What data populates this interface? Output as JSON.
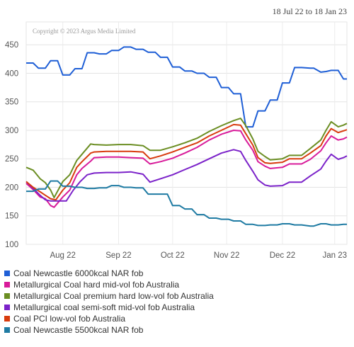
{
  "date_range": "18 Jul 22 to 18 Jan 23",
  "copyright": "Copyright © 2023 Argus Media Limited",
  "chart_data": {
    "type": "line",
    "title": "",
    "xlabel": "",
    "ylabel": "",
    "x_range": [
      "2022-07-18",
      "2023-01-18"
    ],
    "x_ticks": [
      {
        "label": "Aug 22",
        "date": "2022-08-08"
      },
      {
        "label": "Sep 22",
        "date": "2022-09-09"
      },
      {
        "label": "Oct 22",
        "date": "2022-10-10"
      },
      {
        "label": "Nov 22",
        "date": "2022-11-10"
      },
      {
        "label": "Dec 22",
        "date": "2022-12-12"
      },
      {
        "label": "Jan 23",
        "date": "2023-01-11"
      }
    ],
    "ylim": [
      100,
      490
    ],
    "y_ticks": [
      100,
      150,
      200,
      250,
      300,
      350,
      400,
      450
    ],
    "grid": true,
    "legend_position": "bottom",
    "series": [
      {
        "name": "Coal Newcastle 6000kcal NAR fob",
        "color": "#1f5fd6",
        "points": [
          [
            "2022-07-18",
            418
          ],
          [
            "2022-07-22",
            418
          ],
          [
            "2022-07-25",
            409
          ],
          [
            "2022-07-29",
            409
          ],
          [
            "2022-08-01",
            422
          ],
          [
            "2022-08-05",
            422
          ],
          [
            "2022-08-08",
            397
          ],
          [
            "2022-08-12",
            397
          ],
          [
            "2022-08-15",
            408
          ],
          [
            "2022-08-19",
            408
          ],
          [
            "2022-08-22",
            436
          ],
          [
            "2022-08-26",
            436
          ],
          [
            "2022-08-29",
            434
          ],
          [
            "2022-09-02",
            434
          ],
          [
            "2022-09-05",
            440
          ],
          [
            "2022-09-09",
            440
          ],
          [
            "2022-09-12",
            446
          ],
          [
            "2022-09-16",
            446
          ],
          [
            "2022-09-19",
            442
          ],
          [
            "2022-09-23",
            442
          ],
          [
            "2022-09-26",
            437
          ],
          [
            "2022-09-30",
            437
          ],
          [
            "2022-10-03",
            428
          ],
          [
            "2022-10-07",
            428
          ],
          [
            "2022-10-10",
            411
          ],
          [
            "2022-10-14",
            411
          ],
          [
            "2022-10-17",
            404
          ],
          [
            "2022-10-21",
            404
          ],
          [
            "2022-10-24",
            400
          ],
          [
            "2022-10-28",
            400
          ],
          [
            "2022-10-31",
            393
          ],
          [
            "2022-11-04",
            393
          ],
          [
            "2022-11-07",
            375
          ],
          [
            "2022-11-11",
            375
          ],
          [
            "2022-11-14",
            364
          ],
          [
            "2022-11-18",
            364
          ],
          [
            "2022-11-21",
            306
          ],
          [
            "2022-11-25",
            306
          ],
          [
            "2022-11-28",
            334
          ],
          [
            "2022-12-02",
            334
          ],
          [
            "2022-12-05",
            353
          ],
          [
            "2022-12-09",
            353
          ],
          [
            "2022-12-12",
            383
          ],
          [
            "2022-12-16",
            383
          ],
          [
            "2022-12-19",
            410
          ],
          [
            "2022-12-23",
            410
          ],
          [
            "2022-12-28",
            409
          ],
          [
            "2022-12-30",
            409
          ],
          [
            "2023-01-03",
            402
          ],
          [
            "2023-01-06",
            403
          ],
          [
            "2023-01-09",
            405
          ],
          [
            "2023-01-13",
            405
          ],
          [
            "2023-01-16",
            390
          ],
          [
            "2023-01-18",
            390
          ]
        ]
      },
      {
        "name": "Metallurgical Coal hard mid-vol fob Australia",
        "color": "#d81b9a",
        "points": [
          [
            "2022-07-18",
            207
          ],
          [
            "2022-07-22",
            196
          ],
          [
            "2022-07-26",
            183
          ],
          [
            "2022-07-29",
            180
          ],
          [
            "2022-08-01",
            168
          ],
          [
            "2022-08-03",
            165
          ],
          [
            "2022-08-08",
            183
          ],
          [
            "2022-08-12",
            195
          ],
          [
            "2022-08-16",
            222
          ],
          [
            "2022-08-19",
            233
          ],
          [
            "2022-08-24",
            246
          ],
          [
            "2022-08-26",
            252
          ],
          [
            "2022-09-02",
            253
          ],
          [
            "2022-09-09",
            253
          ],
          [
            "2022-09-16",
            252
          ],
          [
            "2022-09-23",
            251
          ],
          [
            "2022-09-27",
            241
          ],
          [
            "2022-10-03",
            245
          ],
          [
            "2022-10-10",
            251
          ],
          [
            "2022-10-17",
            260
          ],
          [
            "2022-10-24",
            270
          ],
          [
            "2022-10-31",
            283
          ],
          [
            "2022-11-07",
            293
          ],
          [
            "2022-11-14",
            300
          ],
          [
            "2022-11-18",
            299
          ],
          [
            "2022-11-21",
            283
          ],
          [
            "2022-11-25",
            265
          ],
          [
            "2022-11-28",
            245
          ],
          [
            "2022-12-02",
            237
          ],
          [
            "2022-12-05",
            233
          ],
          [
            "2022-12-12",
            235
          ],
          [
            "2022-12-16",
            241
          ],
          [
            "2022-12-23",
            241
          ],
          [
            "2022-12-28",
            249
          ],
          [
            "2023-01-03",
            264
          ],
          [
            "2023-01-06",
            278
          ],
          [
            "2023-01-09",
            290
          ],
          [
            "2023-01-13",
            283
          ],
          [
            "2023-01-16",
            285
          ],
          [
            "2023-01-18",
            288
          ]
        ]
      },
      {
        "name": "Metallurgical Coal premium hard low-vol fob Australia",
        "color": "#6b8e23",
        "points": [
          [
            "2022-07-18",
            235
          ],
          [
            "2022-07-22",
            230
          ],
          [
            "2022-07-26",
            215
          ],
          [
            "2022-07-29",
            208
          ],
          [
            "2022-08-01",
            195
          ],
          [
            "2022-08-03",
            182
          ],
          [
            "2022-08-08",
            210
          ],
          [
            "2022-08-12",
            222
          ],
          [
            "2022-08-16",
            247
          ],
          [
            "2022-08-19",
            258
          ],
          [
            "2022-08-24",
            276
          ],
          [
            "2022-08-26",
            275
          ],
          [
            "2022-09-02",
            274
          ],
          [
            "2022-09-09",
            275
          ],
          [
            "2022-09-16",
            275
          ],
          [
            "2022-09-23",
            273
          ],
          [
            "2022-09-27",
            265
          ],
          [
            "2022-10-03",
            265
          ],
          [
            "2022-10-10",
            271
          ],
          [
            "2022-10-17",
            278
          ],
          [
            "2022-10-24",
            286
          ],
          [
            "2022-10-31",
            298
          ],
          [
            "2022-11-07",
            308
          ],
          [
            "2022-11-14",
            317
          ],
          [
            "2022-11-18",
            321
          ],
          [
            "2022-11-21",
            308
          ],
          [
            "2022-11-25",
            285
          ],
          [
            "2022-11-28",
            263
          ],
          [
            "2022-12-02",
            254
          ],
          [
            "2022-12-05",
            248
          ],
          [
            "2022-12-12",
            250
          ],
          [
            "2022-12-16",
            256
          ],
          [
            "2022-12-23",
            256
          ],
          [
            "2022-12-28",
            268
          ],
          [
            "2023-01-03",
            283
          ],
          [
            "2023-01-06",
            300
          ],
          [
            "2023-01-09",
            315
          ],
          [
            "2023-01-13",
            306
          ],
          [
            "2023-01-16",
            309
          ],
          [
            "2023-01-18",
            312
          ]
        ]
      },
      {
        "name": "Metallurgical coal semi-soft mid-vol fob Australia",
        "color": "#7b22c9",
        "points": [
          [
            "2022-07-18",
            210
          ],
          [
            "2022-07-22",
            198
          ],
          [
            "2022-07-26",
            186
          ],
          [
            "2022-07-29",
            178
          ],
          [
            "2022-08-01",
            176
          ],
          [
            "2022-08-05",
            176
          ],
          [
            "2022-08-10",
            176
          ],
          [
            "2022-08-14",
            195
          ],
          [
            "2022-08-18",
            210
          ],
          [
            "2022-08-22",
            222
          ],
          [
            "2022-08-26",
            225
          ],
          [
            "2022-09-02",
            226
          ],
          [
            "2022-09-09",
            226
          ],
          [
            "2022-09-16",
            227
          ],
          [
            "2022-09-23",
            223
          ],
          [
            "2022-09-27",
            209
          ],
          [
            "2022-10-03",
            215
          ],
          [
            "2022-10-10",
            222
          ],
          [
            "2022-10-17",
            231
          ],
          [
            "2022-10-24",
            240
          ],
          [
            "2022-10-31",
            250
          ],
          [
            "2022-11-07",
            260
          ],
          [
            "2022-11-14",
            266
          ],
          [
            "2022-11-18",
            263
          ],
          [
            "2022-11-21",
            247
          ],
          [
            "2022-11-25",
            228
          ],
          [
            "2022-11-28",
            213
          ],
          [
            "2022-12-02",
            204
          ],
          [
            "2022-12-05",
            202
          ],
          [
            "2022-12-12",
            203
          ],
          [
            "2022-12-16",
            209
          ],
          [
            "2022-12-23",
            209
          ],
          [
            "2022-12-28",
            220
          ],
          [
            "2023-01-03",
            232
          ],
          [
            "2023-01-06",
            246
          ],
          [
            "2023-01-09",
            258
          ],
          [
            "2023-01-13",
            249
          ],
          [
            "2023-01-16",
            252
          ],
          [
            "2023-01-18",
            255
          ]
        ]
      },
      {
        "name": "Coal PCI low-vol fob Australia",
        "color": "#d83b0e",
        "points": [
          [
            "2022-07-18",
            210
          ],
          [
            "2022-07-22",
            200
          ],
          [
            "2022-07-26",
            192
          ],
          [
            "2022-07-29",
            186
          ],
          [
            "2022-08-01",
            180
          ],
          [
            "2022-08-04",
            178
          ],
          [
            "2022-08-08",
            195
          ],
          [
            "2022-08-12",
            208
          ],
          [
            "2022-08-16",
            235
          ],
          [
            "2022-08-19",
            245
          ],
          [
            "2022-08-24",
            260
          ],
          [
            "2022-08-26",
            262
          ],
          [
            "2022-09-02",
            263
          ],
          [
            "2022-09-09",
            263
          ],
          [
            "2022-09-16",
            263
          ],
          [
            "2022-09-23",
            262
          ],
          [
            "2022-09-27",
            250
          ],
          [
            "2022-10-03",
            255
          ],
          [
            "2022-10-10",
            262
          ],
          [
            "2022-10-17",
            270
          ],
          [
            "2022-10-24",
            278
          ],
          [
            "2022-10-31",
            290
          ],
          [
            "2022-11-07",
            300
          ],
          [
            "2022-11-14",
            310
          ],
          [
            "2022-11-18",
            309
          ],
          [
            "2022-11-21",
            294
          ],
          [
            "2022-11-25",
            274
          ],
          [
            "2022-11-28",
            252
          ],
          [
            "2022-12-02",
            243
          ],
          [
            "2022-12-05",
            242
          ],
          [
            "2022-12-12",
            244
          ],
          [
            "2022-12-16",
            250
          ],
          [
            "2022-12-23",
            250
          ],
          [
            "2022-12-28",
            260
          ],
          [
            "2023-01-03",
            273
          ],
          [
            "2023-01-06",
            290
          ],
          [
            "2023-01-09",
            303
          ],
          [
            "2023-01-13",
            296
          ],
          [
            "2023-01-16",
            299
          ],
          [
            "2023-01-18",
            301
          ]
        ]
      },
      {
        "name": "Coal Newcastle 5500kcal NAR fob",
        "color": "#1f7ba3",
        "points": [
          [
            "2022-07-18",
            193
          ],
          [
            "2022-07-22",
            193
          ],
          [
            "2022-07-25",
            197
          ],
          [
            "2022-07-29",
            197
          ],
          [
            "2022-08-01",
            211
          ],
          [
            "2022-08-05",
            211
          ],
          [
            "2022-08-08",
            202
          ],
          [
            "2022-08-12",
            202
          ],
          [
            "2022-08-15",
            200
          ],
          [
            "2022-08-19",
            200
          ],
          [
            "2022-08-22",
            198
          ],
          [
            "2022-08-26",
            198
          ],
          [
            "2022-08-29",
            199
          ],
          [
            "2022-09-02",
            199
          ],
          [
            "2022-09-05",
            203
          ],
          [
            "2022-09-09",
            203
          ],
          [
            "2022-09-12",
            200
          ],
          [
            "2022-09-16",
            200
          ],
          [
            "2022-09-19",
            199
          ],
          [
            "2022-09-23",
            199
          ],
          [
            "2022-09-26",
            188
          ],
          [
            "2022-10-07",
            188
          ],
          [
            "2022-10-10",
            168
          ],
          [
            "2022-10-14",
            168
          ],
          [
            "2022-10-17",
            162
          ],
          [
            "2022-10-21",
            162
          ],
          [
            "2022-10-24",
            152
          ],
          [
            "2022-10-28",
            152
          ],
          [
            "2022-10-31",
            146
          ],
          [
            "2022-11-04",
            146
          ],
          [
            "2022-11-07",
            144
          ],
          [
            "2022-11-11",
            144
          ],
          [
            "2022-11-14",
            141
          ],
          [
            "2022-11-18",
            141
          ],
          [
            "2022-11-21",
            135
          ],
          [
            "2022-11-25",
            135
          ],
          [
            "2022-11-28",
            133
          ],
          [
            "2022-12-02",
            133
          ],
          [
            "2022-12-05",
            134
          ],
          [
            "2022-12-09",
            134
          ],
          [
            "2022-12-12",
            136
          ],
          [
            "2022-12-16",
            136
          ],
          [
            "2022-12-19",
            134
          ],
          [
            "2022-12-23",
            134
          ],
          [
            "2022-12-28",
            132
          ],
          [
            "2022-12-30",
            132
          ],
          [
            "2023-01-03",
            136
          ],
          [
            "2023-01-06",
            136
          ],
          [
            "2023-01-09",
            134
          ],
          [
            "2023-01-13",
            134
          ],
          [
            "2023-01-16",
            135
          ],
          [
            "2023-01-18",
            135
          ]
        ]
      }
    ]
  }
}
